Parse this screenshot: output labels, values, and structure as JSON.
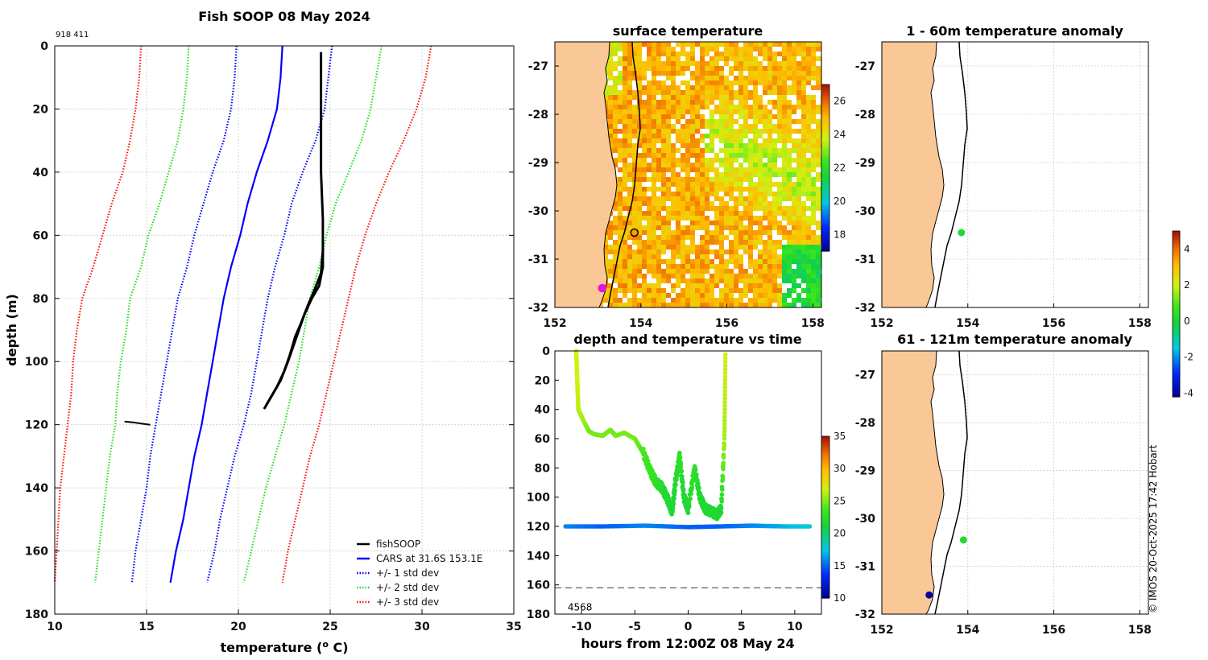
{
  "figure": {
    "main_title": "Fish SOOP 08 May 2024",
    "corner_id": "918 411",
    "credit": "© IMOS 20-Oct-2025 17:42 Hobart"
  },
  "chart_data": [
    {
      "id": "profile",
      "type": "line",
      "title": "Fish SOOP 08 May 2024",
      "xlabel": "temperature (",
      "xlabel_sup": "o",
      "xlabel_unit": " C)",
      "ylabel": "depth (m)",
      "xlim": [
        10,
        35
      ],
      "ylim": [
        180,
        0
      ],
      "xticks": [
        10,
        15,
        20,
        25,
        30,
        35
      ],
      "yticks": [
        0,
        20,
        40,
        60,
        80,
        100,
        120,
        140,
        160,
        180
      ],
      "grid": true,
      "legend_position": "bottom-right",
      "legend": [
        {
          "label": "fishSOOP",
          "color": "#000000",
          "style": "solid"
        },
        {
          "label": "CARS at 31.6S 153.1E",
          "color": "#0000ff",
          "style": "solid"
        },
        {
          "label": "+/- 1 std dev",
          "color": "#0000ff",
          "style": "dotted"
        },
        {
          "label": "+/- 2 std dev",
          "color": "#22dd22",
          "style": "dotted"
        },
        {
          "label": "+/- 3 std dev",
          "color": "#ff1100",
          "style": "dotted"
        }
      ],
      "series": [
        {
          "name": "CARS",
          "color": "#0000ff",
          "style": "solid",
          "points": [
            [
              22.4,
              0
            ],
            [
              22.3,
              10
            ],
            [
              22.1,
              20
            ],
            [
              21.6,
              30
            ],
            [
              21.0,
              40
            ],
            [
              20.5,
              50
            ],
            [
              20.1,
              60
            ],
            [
              19.6,
              70
            ],
            [
              19.2,
              80
            ],
            [
              18.9,
              90
            ],
            [
              18.6,
              100
            ],
            [
              18.3,
              110
            ],
            [
              18.0,
              120
            ],
            [
              17.6,
              130
            ],
            [
              17.3,
              140
            ],
            [
              17.0,
              150
            ],
            [
              16.6,
              160
            ],
            [
              16.3,
              170
            ]
          ]
        },
        {
          "name": "plus 1 std",
          "color": "#0000ff",
          "style": "dotted",
          "points": [
            [
              25.1,
              0
            ],
            [
              24.9,
              10
            ],
            [
              24.7,
              20
            ],
            [
              24.2,
              30
            ],
            [
              23.5,
              40
            ],
            [
              22.9,
              50
            ],
            [
              22.5,
              60
            ],
            [
              22.0,
              70
            ],
            [
              21.6,
              80
            ],
            [
              21.3,
              90
            ],
            [
              21.0,
              100
            ],
            [
              20.7,
              110
            ],
            [
              20.3,
              120
            ],
            [
              19.8,
              130
            ],
            [
              19.4,
              140
            ],
            [
              19.0,
              150
            ],
            [
              18.7,
              160
            ],
            [
              18.3,
              170
            ]
          ]
        },
        {
          "name": "minus 1 std",
          "color": "#0000ff",
          "style": "dotted",
          "points": [
            [
              19.9,
              0
            ],
            [
              19.8,
              10
            ],
            [
              19.6,
              20
            ],
            [
              19.2,
              30
            ],
            [
              18.6,
              40
            ],
            [
              18.1,
              50
            ],
            [
              17.6,
              60
            ],
            [
              17.2,
              70
            ],
            [
              16.7,
              80
            ],
            [
              16.4,
              90
            ],
            [
              16.1,
              100
            ],
            [
              15.8,
              110
            ],
            [
              15.5,
              120
            ],
            [
              15.2,
              130
            ],
            [
              15.0,
              140
            ],
            [
              14.7,
              150
            ],
            [
              14.4,
              160
            ],
            [
              14.2,
              170
            ]
          ]
        },
        {
          "name": "plus 2 std",
          "color": "#22dd22",
          "style": "dotted",
          "points": [
            [
              27.8,
              0
            ],
            [
              27.5,
              10
            ],
            [
              27.2,
              20
            ],
            [
              26.7,
              30
            ],
            [
              26.0,
              40
            ],
            [
              25.3,
              50
            ],
            [
              24.8,
              60
            ],
            [
              24.4,
              70
            ],
            [
              23.9,
              80
            ],
            [
              23.6,
              90
            ],
            [
              23.3,
              100
            ],
            [
              22.9,
              110
            ],
            [
              22.5,
              120
            ],
            [
              22.0,
              130
            ],
            [
              21.5,
              140
            ],
            [
              21.1,
              150
            ],
            [
              20.7,
              160
            ],
            [
              20.3,
              170
            ]
          ]
        },
        {
          "name": "minus 2 std",
          "color": "#22dd22",
          "style": "dotted",
          "points": [
            [
              17.3,
              0
            ],
            [
              17.2,
              10
            ],
            [
              17.0,
              20
            ],
            [
              16.7,
              30
            ],
            [
              16.2,
              40
            ],
            [
              15.7,
              50
            ],
            [
              15.1,
              60
            ],
            [
              14.7,
              70
            ],
            [
              14.1,
              80
            ],
            [
              13.9,
              90
            ],
            [
              13.6,
              100
            ],
            [
              13.4,
              110
            ],
            [
              13.3,
              120
            ],
            [
              13.0,
              130
            ],
            [
              12.8,
              140
            ],
            [
              12.6,
              150
            ],
            [
              12.4,
              160
            ],
            [
              12.2,
              170
            ]
          ]
        },
        {
          "name": "plus 3 std",
          "color": "#ff1100",
          "style": "dotted",
          "points": [
            [
              30.5,
              0
            ],
            [
              30.2,
              10
            ],
            [
              29.7,
              20
            ],
            [
              29.0,
              30
            ],
            [
              28.2,
              40
            ],
            [
              27.5,
              50
            ],
            [
              26.9,
              60
            ],
            [
              26.4,
              70
            ],
            [
              26.0,
              80
            ],
            [
              25.6,
              90
            ],
            [
              25.2,
              100
            ],
            [
              24.8,
              110
            ],
            [
              24.4,
              120
            ],
            [
              23.9,
              130
            ],
            [
              23.5,
              140
            ],
            [
              23.1,
              150
            ],
            [
              22.7,
              160
            ],
            [
              22.4,
              170
            ]
          ]
        },
        {
          "name": "minus 3 std",
          "color": "#ff1100",
          "style": "dotted",
          "points": [
            [
              14.7,
              0
            ],
            [
              14.6,
              10
            ],
            [
              14.4,
              20
            ],
            [
              14.1,
              30
            ],
            [
              13.7,
              40
            ],
            [
              13.1,
              50
            ],
            [
              12.6,
              60
            ],
            [
              12.1,
              70
            ],
            [
              11.5,
              80
            ],
            [
              11.2,
              90
            ],
            [
              11.0,
              100
            ],
            [
              10.9,
              110
            ],
            [
              10.7,
              120
            ],
            [
              10.5,
              130
            ],
            [
              10.3,
              140
            ],
            [
              10.2,
              150
            ],
            [
              10.1,
              160
            ],
            [
              10.0,
              170
            ]
          ]
        },
        {
          "name": "fishSOOP",
          "color": "#000000",
          "style": "solid",
          "width": 3,
          "points": [
            [
              24.5,
              2
            ],
            [
              24.5,
              10
            ],
            [
              24.5,
              20
            ],
            [
              24.5,
              40
            ],
            [
              24.6,
              55
            ],
            [
              24.6,
              65
            ],
            [
              24.5,
              72
            ],
            [
              24.1,
              78
            ],
            [
              23.8,
              82
            ],
            [
              23.4,
              88
            ],
            [
              23.1,
              92
            ],
            [
              22.8,
              98
            ],
            [
              22.5,
              103
            ],
            [
              22.1,
              108
            ],
            [
              21.7,
              112
            ],
            [
              21.4,
              115
            ]
          ]
        },
        {
          "name": "fishSOOP band",
          "color": "#000000",
          "style": "solid",
          "width": 3,
          "points": [
            [
              24.6,
              64
            ],
            [
              24.6,
              70
            ],
            [
              24.4,
              76
            ],
            [
              24.0,
              80
            ],
            [
              23.6,
              85
            ],
            [
              23.3,
              90
            ],
            [
              23.0,
              95
            ],
            [
              22.7,
              100
            ],
            [
              22.3,
              106
            ],
            [
              21.9,
              110
            ],
            [
              21.5,
              114
            ]
          ]
        },
        {
          "name": "fishSOOP deep",
          "color": "#000000",
          "style": "solid",
          "width": 2,
          "points": [
            [
              13.8,
              119
            ],
            [
              14.3,
              119.3
            ],
            [
              14.8,
              119.7
            ],
            [
              15.2,
              120
            ]
          ]
        }
      ]
    },
    {
      "id": "sst",
      "type": "heatmap",
      "title": "surface temperature",
      "xlim": [
        152,
        158.2
      ],
      "ylim": [
        -32,
        -26.5
      ],
      "xticks": [
        152,
        154,
        156,
        158
      ],
      "yticks": [
        -27,
        -28,
        -29,
        -30,
        -31,
        -32
      ],
      "colorbar": {
        "min": 17,
        "max": 27,
        "ticks": [
          18,
          20,
          22,
          24,
          26
        ]
      },
      "markers": [
        {
          "lon": 153.85,
          "lat": -30.45,
          "label": "vessel position",
          "fill": "none",
          "edge": "#000000"
        },
        {
          "lon": 153.1,
          "lat": -31.6,
          "label": "CARS location",
          "fill": "#cc22cc",
          "edge": "#ff00ff"
        }
      ]
    },
    {
      "id": "depthtime",
      "type": "scatter",
      "title": "depth and temperature vs time",
      "xlabel": "hours from 12:00Z 08 May 24",
      "xlim": [
        -12.5,
        12.5
      ],
      "ylim": [
        180,
        0
      ],
      "xticks": [
        -10,
        -5,
        0,
        5,
        10
      ],
      "yticks": [
        0,
        20,
        40,
        60,
        80,
        100,
        120,
        140,
        160,
        180
      ],
      "bottom_depth": 162,
      "bottom_label": "4568",
      "colorbar": {
        "min": 10,
        "max": 35,
        "ticks": [
          10,
          15,
          20,
          25,
          30,
          35
        ]
      },
      "series": [
        {
          "name": "fishing track",
          "points": [
            [
              -10.5,
              0,
              27
            ],
            [
              -10.4,
              20,
              27
            ],
            [
              -10.3,
              40,
              26.5
            ],
            [
              -9.8,
              48,
              26
            ],
            [
              -9.3,
              55,
              25
            ],
            [
              -8.8,
              57,
              25
            ],
            [
              -8.0,
              58,
              25
            ],
            [
              -7.3,
              54,
              25
            ],
            [
              -6.8,
              58,
              25
            ],
            [
              -6.0,
              56,
              25
            ],
            [
              -5.0,
              60,
              25
            ],
            [
              -4.2,
              70,
              24
            ],
            [
              -3.5,
              83,
              23.5
            ],
            [
              -3.0,
              90,
              23
            ],
            [
              -2.5,
              93,
              22.5
            ],
            [
              -2.0,
              100,
              22
            ],
            [
              -1.5,
              110,
              22
            ],
            [
              -1.2,
              90,
              22
            ],
            [
              -0.8,
              72,
              23
            ],
            [
              -0.4,
              100,
              22
            ],
            [
              0.0,
              108,
              22
            ],
            [
              0.6,
              80,
              23
            ],
            [
              1.1,
              100,
              22
            ],
            [
              1.6,
              108,
              22
            ],
            [
              2.2,
              110,
              22
            ],
            [
              2.7,
              112,
              22
            ],
            [
              3.1,
              108,
              22
            ],
            [
              3.4,
              60,
              26
            ],
            [
              3.5,
              0,
              27
            ]
          ]
        },
        {
          "name": "bottom line",
          "points": [
            [
              -11.5,
              120,
              16
            ],
            [
              -8.0,
              120,
              15
            ],
            [
              -4.0,
              119.5,
              16
            ],
            [
              0.0,
              120.5,
              15
            ],
            [
              3.0,
              120,
              15
            ],
            [
              6.0,
              119.5,
              16
            ],
            [
              9.0,
              120,
              17
            ],
            [
              11.5,
              120,
              18
            ]
          ]
        }
      ]
    },
    {
      "id": "anom1",
      "type": "scatter",
      "title": "1 - 60m temperature anomaly",
      "xlim": [
        152,
        158.2
      ],
      "ylim": [
        -32,
        -26.5
      ],
      "xticks": [
        152,
        154,
        156,
        158
      ],
      "yticks": [
        -27,
        -28,
        -29,
        -30,
        -31,
        -32
      ],
      "points": [
        {
          "lon": 153.85,
          "lat": -30.45,
          "anomaly": 0.2
        }
      ]
    },
    {
      "id": "anom2",
      "type": "scatter",
      "title": "61 - 121m temperature anomaly",
      "xlim": [
        152,
        158.2
      ],
      "ylim": [
        -32,
        -26.5
      ],
      "xticks": [
        152,
        154,
        156,
        158
      ],
      "yticks": [
        -27,
        -28,
        -29,
        -30,
        -31,
        -32
      ],
      "colorbar": {
        "min": -4.2,
        "max": 5,
        "ticks": [
          -4,
          -2,
          0,
          2,
          4
        ]
      },
      "points": [
        {
          "lon": 153.9,
          "lat": -30.45,
          "anomaly": 0.3
        },
        {
          "lon": 153.1,
          "lat": -31.6,
          "anomaly": -4.0
        }
      ]
    }
  ]
}
